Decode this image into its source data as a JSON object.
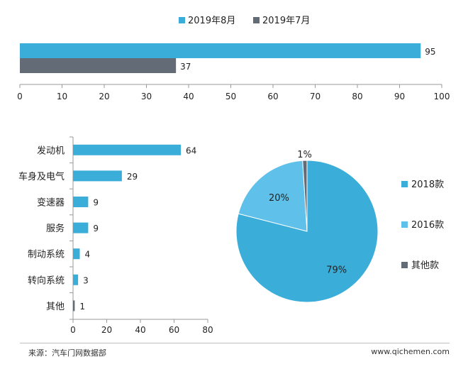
{
  "chart_data": [
    {
      "type": "bar",
      "orientation": "horizontal",
      "series": [
        {
          "name": "2019年8月",
          "color": "#3badd9",
          "values": [
            95
          ]
        },
        {
          "name": "2019年7月",
          "color": "#636b77",
          "values": [
            37
          ]
        }
      ],
      "xlim": [
        0,
        100
      ],
      "xticks": [
        "0",
        "10",
        "20",
        "30",
        "40",
        "50",
        "60",
        "70",
        "80",
        "90",
        "100"
      ],
      "legend": "top-center",
      "grid": false
    },
    {
      "type": "bar",
      "orientation": "horizontal",
      "categories": [
        "发动机",
        "车身及电气",
        "变速器",
        "服务",
        "制动系统",
        "转向系统",
        "其他"
      ],
      "values": [
        64,
        29,
        9,
        9,
        4,
        3,
        1
      ],
      "colors": [
        "#3badd9",
        "#3badd9",
        "#3badd9",
        "#3badd9",
        "#3badd9",
        "#3badd9",
        "#636b77"
      ],
      "xlim": [
        0,
        80
      ],
      "xticks": [
        "0",
        "20",
        "40",
        "60",
        "80"
      ],
      "grid": false
    },
    {
      "type": "pie",
      "slices": [
        {
          "label": "2018款",
          "value": 79,
          "text": "79%",
          "color": "#3badd9"
        },
        {
          "label": "2016款",
          "value": 20,
          "text": "20%",
          "color": "#5fc0ea"
        },
        {
          "label": "其他款",
          "value": 1,
          "text": "1%",
          "color": "#636b77"
        }
      ],
      "legend": "right"
    }
  ],
  "footer": {
    "source": "来源：汽车门网数据部",
    "site": "www.qichemen.com"
  }
}
